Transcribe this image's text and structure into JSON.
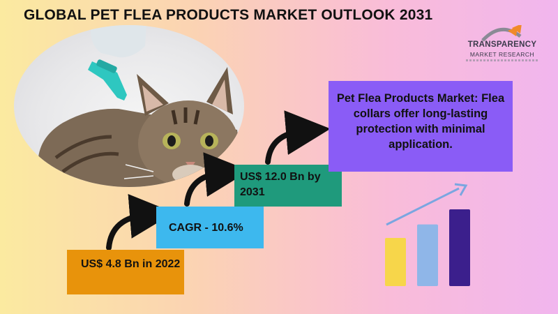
{
  "title": "GLOBAL PET FLEA PRODUCTS MARKET OUTLOOK 2031",
  "logo": {
    "line1": "TRANSPARENCY",
    "line2": "MARKET RESEARCH"
  },
  "steps": [
    {
      "label": "US$ 4.8 Bn in 2022",
      "color": "#e8930b"
    },
    {
      "label": "CAGR - 10.6%",
      "color": "#3db8ee"
    },
    {
      "label": "US$ 12.0 Bn by 2031",
      "color": "#1f9a7c"
    }
  ],
  "callout": {
    "text": "Pet Flea Products Market: Flea collars offer long-lasting protection with minimal application.",
    "color": "#8a5cf6"
  },
  "icon_chart": {
    "values": [
      3.2,
      4.1,
      5.1
    ],
    "colors": [
      "#f7d64a",
      "#8fb6e8",
      "#3b1f8c"
    ],
    "trend_color": "#7aa6e0"
  },
  "photo": {
    "icon": "cat-flea-treatment-photo"
  }
}
